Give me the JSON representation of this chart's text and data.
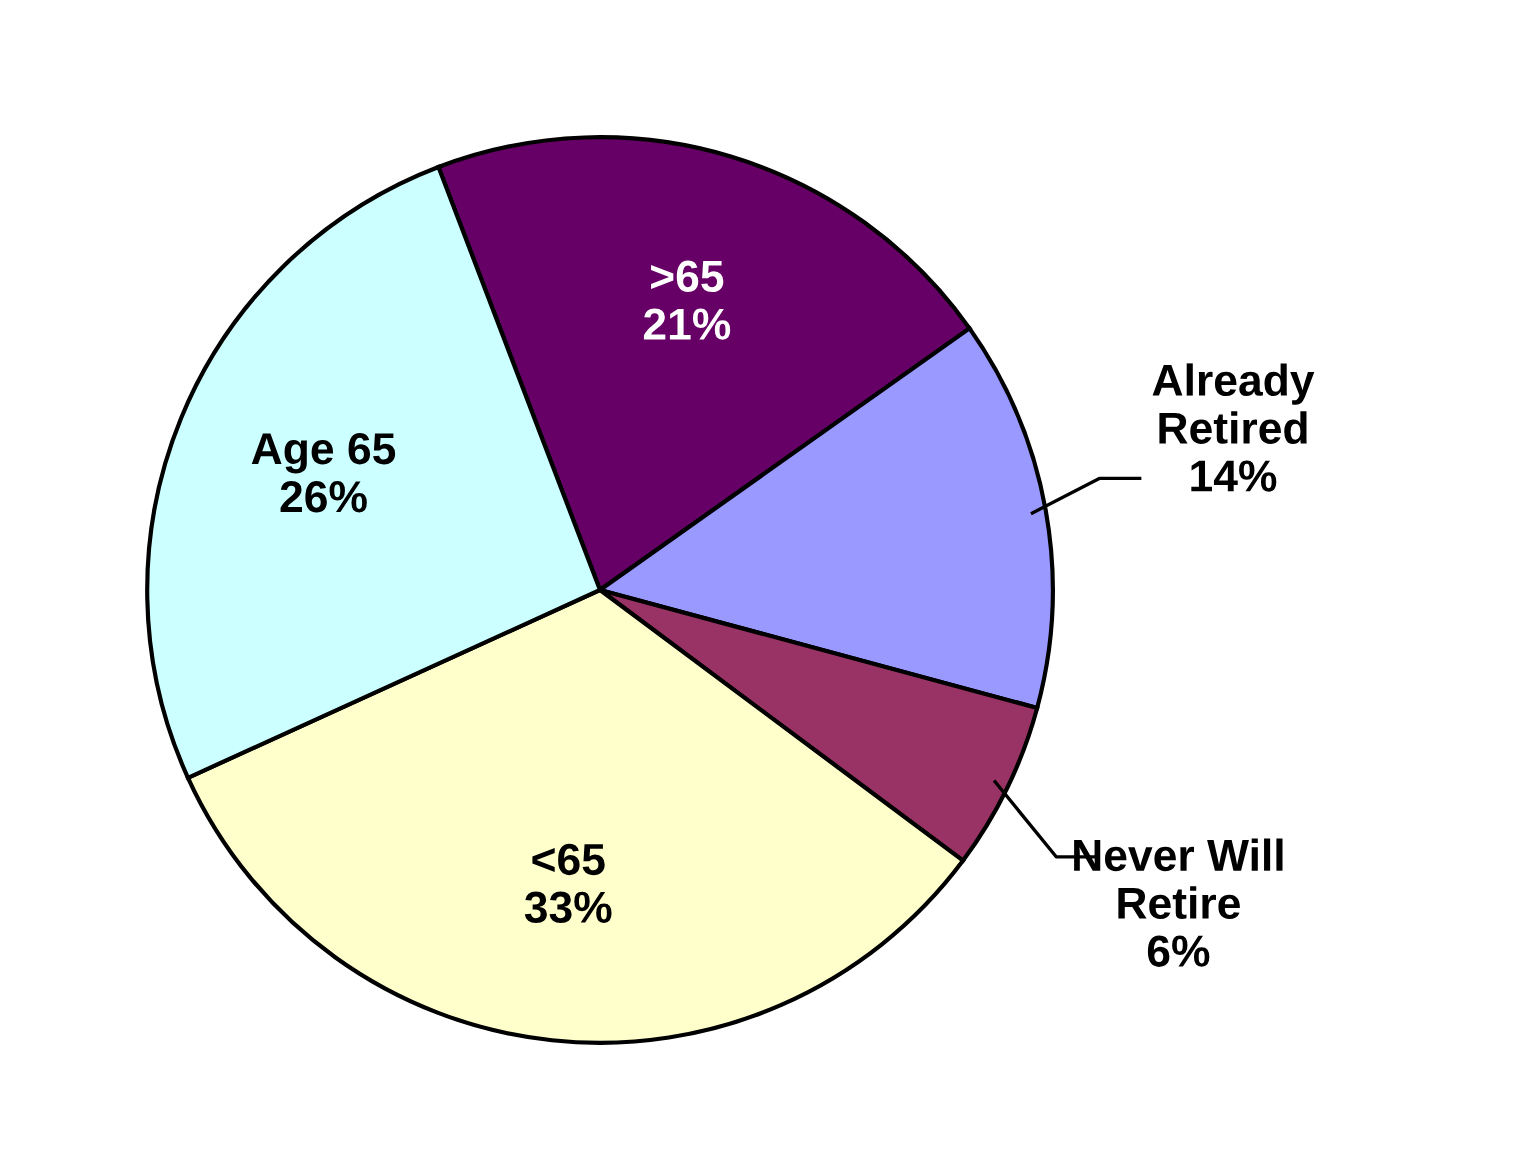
{
  "chart_data": {
    "type": "pie",
    "categories": [
      ">65",
      "Already Retired",
      "Never Will Retire",
      "<65",
      "Age 65"
    ],
    "values": [
      21,
      14,
      6,
      33,
      26
    ],
    "colors": [
      "#660066",
      "#9999ff",
      "#993366",
      "#ffffcc",
      "#ccffff"
    ],
    "value_labels": [
      "21%",
      "14%",
      "6%",
      "33%",
      "26%"
    ]
  }
}
